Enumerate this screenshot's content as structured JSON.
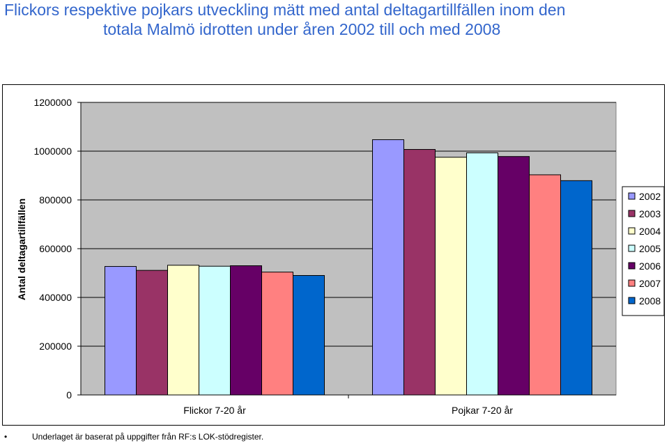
{
  "title_line1": "Flickors respektive pojkars utveckling mätt med antal deltagartillfällen inom den",
  "title_line2": "totala Malmö idrotten under åren 2002 till och med 2008",
  "footnote": "Underlaget är baserat på uppgifter från RF:s LOK-stödregister.",
  "footnote_bullet": "•",
  "chart_data": {
    "type": "bar",
    "title": "",
    "xlabel": "",
    "ylabel": "Antal deltagartillfällen",
    "ylim": [
      0,
      1200000
    ],
    "yticks": [
      0,
      200000,
      400000,
      600000,
      800000,
      1000000,
      1200000
    ],
    "grid": "horizontal",
    "legend_position": "right",
    "categories": [
      "Flickor 7-20 år",
      "Pojkar 7-20 år"
    ],
    "series": [
      {
        "name": "2002",
        "color": "#9999ff",
        "values": [
          527000,
          1047000
        ]
      },
      {
        "name": "2003",
        "color": "#993366",
        "values": [
          511000,
          1007000
        ]
      },
      {
        "name": "2004",
        "color": "#ffffcc",
        "values": [
          532000,
          975000
        ]
      },
      {
        "name": "2005",
        "color": "#ccffff",
        "values": [
          528000,
          993000
        ]
      },
      {
        "name": "2006",
        "color": "#660066",
        "values": [
          530000,
          978000
        ]
      },
      {
        "name": "2007",
        "color": "#ff8080",
        "values": [
          504000,
          903000
        ]
      },
      {
        "name": "2008",
        "color": "#0066cc",
        "values": [
          490000,
          879000
        ]
      }
    ],
    "plot_background": "#c0c0c0"
  }
}
